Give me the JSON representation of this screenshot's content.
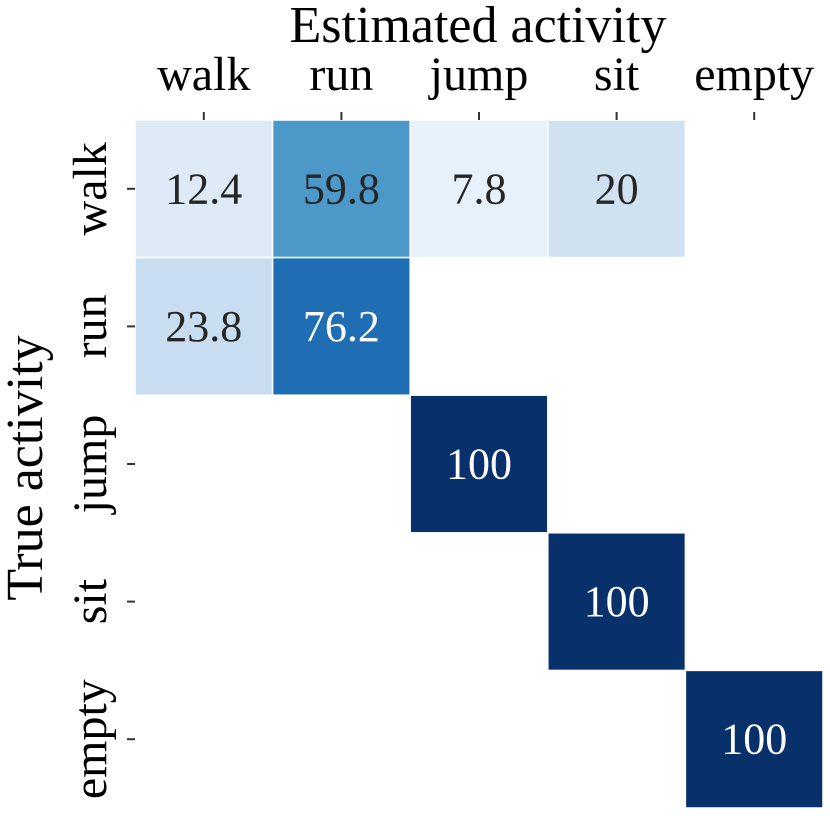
{
  "chart_data": {
    "type": "heatmap",
    "title": "",
    "xlabel": "Estimated activity",
    "ylabel": "True activity",
    "x_categories": [
      "walk",
      "run",
      "jump",
      "sit",
      "empty"
    ],
    "y_categories": [
      "walk",
      "run",
      "jump",
      "sit",
      "empty"
    ],
    "values": [
      [
        12.4,
        59.8,
        7.8,
        20,
        null
      ],
      [
        23.8,
        76.2,
        null,
        null,
        null
      ],
      [
        null,
        null,
        100,
        null,
        null
      ],
      [
        null,
        null,
        null,
        100,
        null
      ],
      [
        null,
        null,
        null,
        null,
        100
      ]
    ],
    "value_range": [
      0,
      100
    ],
    "colormap": "Blues",
    "colors": {
      "light_text": "#ffffff",
      "dark_text": "#262626",
      "tick": "#333333"
    },
    "grid": false,
    "xaxis_position": "top"
  }
}
